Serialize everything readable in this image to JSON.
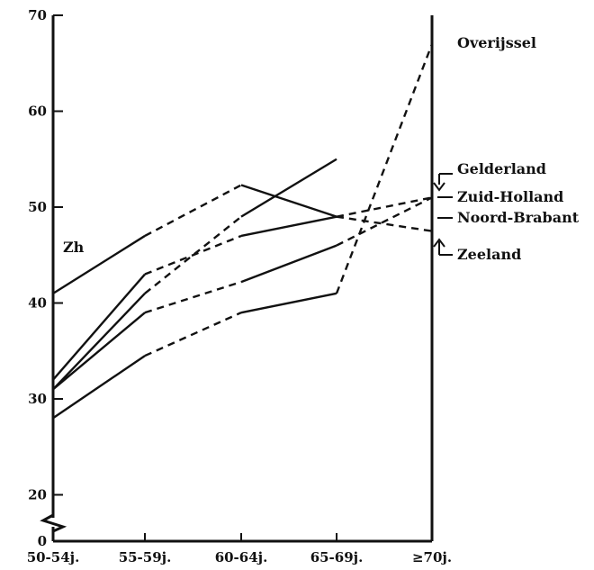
{
  "chart_data": {
    "type": "line",
    "title": "",
    "xlabel": "",
    "ylabel": "",
    "categories": [
      "50-54j.",
      "55-59j.",
      "60-64j.",
      "65-69j.",
      "≥70j."
    ],
    "y_ticks": [
      "0",
      "20",
      "30",
      "40",
      "50",
      "60",
      "70"
    ],
    "ylim": [
      0,
      70
    ],
    "y_axis_break": true,
    "grid": false,
    "legend": "right, labels at line ends",
    "series": [
      {
        "name": "Overijssel",
        "values": [
          28,
          34.5,
          39,
          41,
          67
        ],
        "style": "solid-then-dashed"
      },
      {
        "name": "Gelderland",
        "values": [
          32,
          43,
          47,
          49,
          51
        ],
        "style": "solid-then-dashed"
      },
      {
        "name": "Zuid-Holland",
        "values": [
          41,
          47,
          52.3,
          49,
          47.5
        ],
        "style": "solid-then-dashed"
      },
      {
        "name": "Noord-Brabant",
        "values": [
          31,
          41,
          49,
          55,
          null
        ],
        "style": "solid-then-dashed"
      },
      {
        "name": "Zeeland",
        "values": [
          31,
          39,
          42.2,
          46,
          51
        ],
        "style": "solid-then-dashed"
      }
    ],
    "annotations": [
      "Zh"
    ]
  }
}
